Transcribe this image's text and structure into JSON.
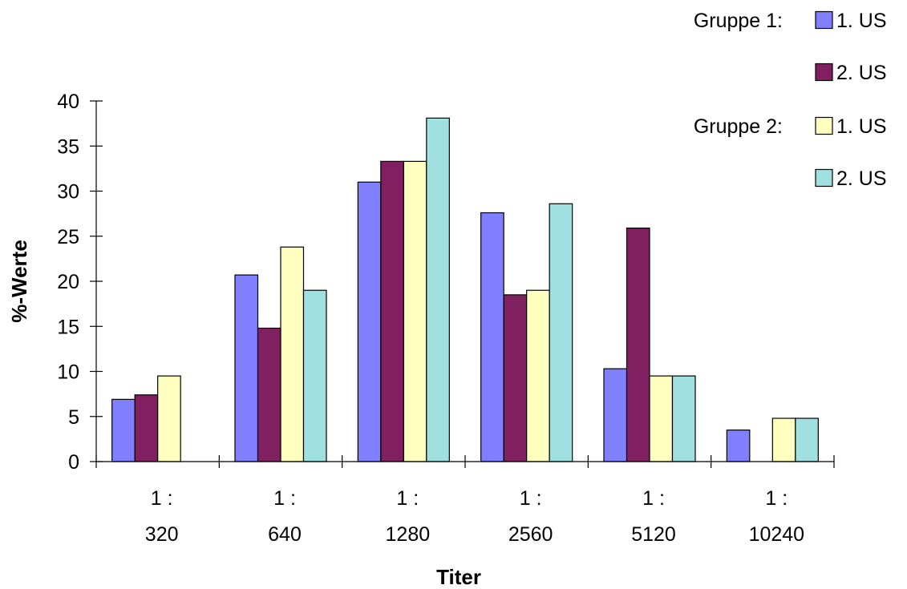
{
  "chart_data": {
    "type": "bar",
    "xlabel": "Titer",
    "ylabel": "%-Werte",
    "ylim": [
      0,
      40
    ],
    "yticks": [
      0,
      5,
      10,
      15,
      20,
      25,
      30,
      35,
      40
    ],
    "grid": false,
    "legend_placement": "top-right",
    "categories": [
      [
        "1 :",
        "320"
      ],
      [
        "1 :",
        "640"
      ],
      [
        "1 :",
        "1280"
      ],
      [
        "1 :",
        "2560"
      ],
      [
        "1 :",
        "5120"
      ],
      [
        "1 :",
        "10240"
      ]
    ],
    "legend_groups": [
      "Gruppe 1:",
      "Gruppe 2:"
    ],
    "series": [
      {
        "name": "1. US",
        "group": 0,
        "color": "#8080ff",
        "values": [
          6.9,
          20.7,
          31.0,
          27.6,
          10.3,
          3.5
        ]
      },
      {
        "name": "2. US",
        "group": 0,
        "color": "#802060",
        "values": [
          7.4,
          14.8,
          33.3,
          18.5,
          25.9,
          0
        ]
      },
      {
        "name": "1. US",
        "group": 1,
        "color": "#ffffc0",
        "values": [
          9.5,
          23.8,
          33.3,
          19.0,
          9.5,
          4.8
        ]
      },
      {
        "name": "2. US",
        "group": 1,
        "color": "#a0e0e0",
        "values": [
          0,
          19.0,
          38.1,
          28.6,
          9.5,
          4.8
        ]
      }
    ]
  }
}
